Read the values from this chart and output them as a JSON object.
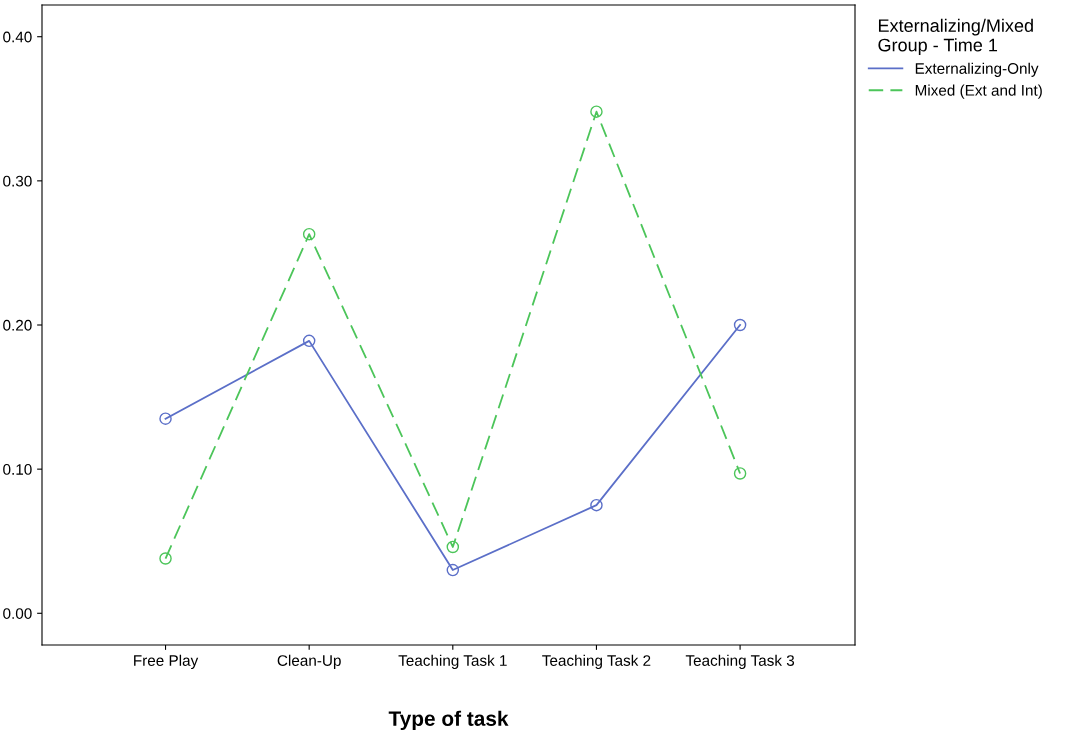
{
  "chart_data": {
    "type": "line",
    "xlabel": "Type of task",
    "legend_title": "Externalizing/Mixed\nGroup - Time 1",
    "categories": [
      "Free Play",
      "Clean-Up",
      "Teaching Task 1",
      "Teaching Task 2",
      "Teaching Task 3"
    ],
    "series": [
      {
        "name": "Externalizing-Only",
        "color": "#5b6fc8",
        "values": [
          0.135,
          0.189,
          0.03,
          0.075,
          0.2
        ],
        "line_style": "solid"
      },
      {
        "name": "Mixed (Ext and Int)",
        "color": "#4cc55a",
        "values": [
          0.038,
          0.263,
          0.046,
          0.348,
          0.097
        ],
        "line_style": "dashed"
      }
    ],
    "ylim": [
      -0.022,
      0.422
    ],
    "yticks": [
      {
        "value": 0,
        "label": "0.00"
      },
      {
        "value": 0.1,
        "label": "0.10"
      },
      {
        "value": 0.2,
        "label": "0.20"
      },
      {
        "value": 0.3,
        "label": "0.30"
      },
      {
        "value": 0.4,
        "label": "0.40"
      }
    ],
    "marker": "circle",
    "grid": false,
    "legend": "top right"
  }
}
